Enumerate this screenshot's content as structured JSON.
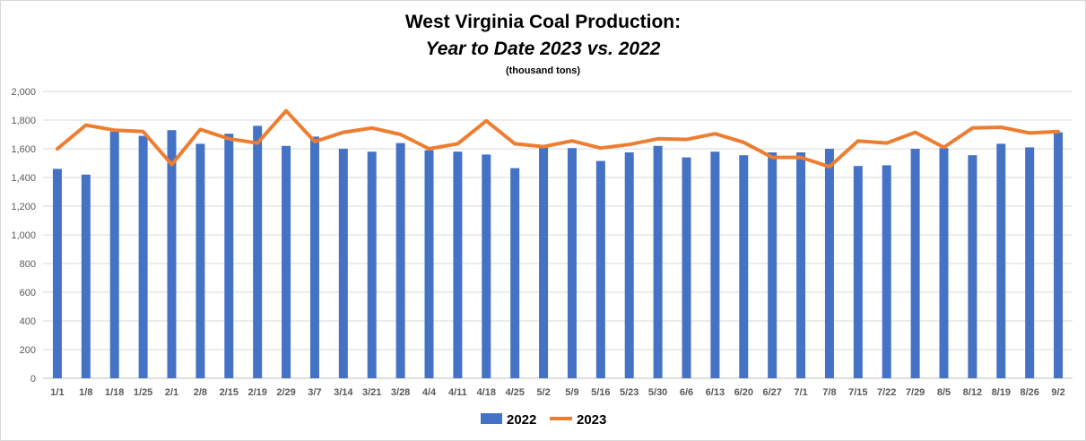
{
  "chart_data": {
    "type": "bar",
    "title_line1": "West Virginia Coal Production:",
    "title_line2": "Year to Date 2023 vs. 2022",
    "subtitle": "(thousand tons)",
    "xlabel": "",
    "ylabel": "",
    "ylim": [
      0,
      2000
    ],
    "yticks": [
      "0",
      "200",
      "400",
      "600",
      "800",
      "1,000",
      "1,200",
      "1,400",
      "1,600",
      "1,800",
      "2,000"
    ],
    "grid": true,
    "legend_position": "bottom",
    "categories": [
      "1/1",
      "1/8",
      "1/18",
      "1/25",
      "2/1",
      "2/8",
      "2/15",
      "2/19",
      "2/29",
      "3/7",
      "3/14",
      "3/21",
      "3/28",
      "4/4",
      "4/11",
      "4/18",
      "4/25",
      "5/2",
      "5/9",
      "5/16",
      "5/23",
      "5/30",
      "6/6",
      "6/13",
      "6/20",
      "6/27",
      "7/1",
      "7/8",
      "7/15",
      "7/22",
      "7/29",
      "8/5",
      "8/12",
      "8/19",
      "8/26",
      "9/2"
    ],
    "series": [
      {
        "name": "2022",
        "type": "bar",
        "color": "#4472c4",
        "values": [
          1460,
          1420,
          1720,
          1690,
          1730,
          1635,
          1705,
          1760,
          1620,
          1685,
          1600,
          1580,
          1640,
          1590,
          1580,
          1560,
          1465,
          1610,
          1605,
          1515,
          1575,
          1620,
          1540,
          1580,
          1555,
          1575,
          1575,
          1600,
          1480,
          1485,
          1600,
          1605,
          1555,
          1635,
          1610,
          1715
        ]
      },
      {
        "name": "2023",
        "type": "line",
        "color": "#ed7d31",
        "values": [
          1600,
          1765,
          1730,
          1720,
          1490,
          1735,
          1670,
          1640,
          1865,
          1650,
          1715,
          1745,
          1700,
          1600,
          1635,
          1795,
          1635,
          1615,
          1655,
          1605,
          1630,
          1670,
          1665,
          1705,
          1645,
          1540,
          1540,
          1475,
          1655,
          1640,
          1715,
          1610,
          1745,
          1750,
          1710,
          1720
        ]
      }
    ]
  }
}
